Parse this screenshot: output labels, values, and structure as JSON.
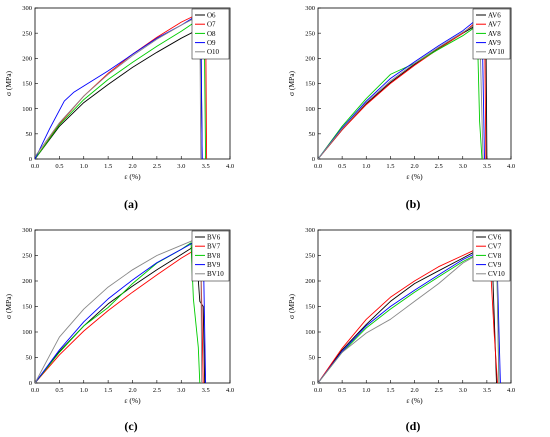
{
  "chart_data": [
    {
      "type": "line",
      "panel_label": "(a)",
      "xlabel": "ε (%)",
      "ylabel": "σ (MPa)",
      "xlim": [
        0.0,
        4.0
      ],
      "ylim": [
        0,
        300
      ],
      "xticks": [
        "0.0",
        "0.5",
        "1.0",
        "1.5",
        "2.0",
        "2.5",
        "3.0",
        "3.5",
        "4.0"
      ],
      "yticks": [
        "0",
        "50",
        "100",
        "150",
        "200",
        "250",
        "300"
      ],
      "legend": "top-right",
      "series": [
        {
          "name": "O6",
          "color": "#000000",
          "points": [
            [
              0,
              0
            ],
            [
              0.5,
              65
            ],
            [
              1.0,
              112
            ],
            [
              1.5,
              148
            ],
            [
              2.0,
              182
            ],
            [
              2.5,
              212
            ],
            [
              3.0,
              240
            ],
            [
              3.4,
              260
            ],
            [
              3.43,
              0
            ]
          ]
        },
        {
          "name": "O7",
          "color": "#ff0000",
          "points": [
            [
              0,
              0
            ],
            [
              0.5,
              70
            ],
            [
              1.0,
              125
            ],
            [
              1.5,
              170
            ],
            [
              2.0,
              208
            ],
            [
              2.5,
              242
            ],
            [
              3.0,
              272
            ],
            [
              3.45,
              293
            ],
            [
              3.5,
              290
            ],
            [
              3.52,
              0
            ]
          ]
        },
        {
          "name": "O8",
          "color": "#00cc00",
          "points": [
            [
              0,
              0
            ],
            [
              0.5,
              68
            ],
            [
              1.0,
              118
            ],
            [
              1.5,
              158
            ],
            [
              2.0,
              192
            ],
            [
              2.5,
              224
            ],
            [
              3.0,
              254
            ],
            [
              3.4,
              280
            ],
            [
              3.47,
              265
            ],
            [
              3.5,
              0
            ]
          ]
        },
        {
          "name": "O9",
          "color": "#0000ff",
          "points": [
            [
              0,
              0
            ],
            [
              0.3,
              60
            ],
            [
              0.6,
              115
            ],
            [
              0.8,
              133
            ],
            [
              1.0,
              145
            ],
            [
              1.5,
              175
            ],
            [
              2.0,
              208
            ],
            [
              2.5,
              240
            ],
            [
              3.0,
              266
            ],
            [
              3.4,
              290
            ],
            [
              3.43,
              0
            ]
          ]
        },
        {
          "name": "O10",
          "color": "#888888",
          "points": [
            [
              0,
              5
            ],
            [
              0.5,
              72
            ],
            [
              1.0,
              125
            ],
            [
              1.5,
              168
            ],
            [
              2.0,
              205
            ],
            [
              2.5,
              238
            ],
            [
              3.0,
              266
            ],
            [
              3.38,
              285
            ],
            [
              3.4,
              0
            ]
          ]
        }
      ]
    },
    {
      "type": "line",
      "panel_label": "(b)",
      "xlabel": "ε (%)",
      "ylabel": "σ (MPa)",
      "xlim": [
        0.0,
        4.0
      ],
      "ylim": [
        0,
        300
      ],
      "xticks": [
        "0.0",
        "0.5",
        "1.0",
        "1.5",
        "2.0",
        "2.5",
        "3.0",
        "3.5",
        "4.0"
      ],
      "yticks": [
        "0",
        "50",
        "100",
        "150",
        "200",
        "250",
        "300"
      ],
      "legend": "top-right",
      "series": [
        {
          "name": "AV6",
          "color": "#000000",
          "points": [
            [
              0,
              0
            ],
            [
              0.5,
              58
            ],
            [
              1.0,
              110
            ],
            [
              1.5,
              152
            ],
            [
              2.0,
              188
            ],
            [
              2.5,
              220
            ],
            [
              3.0,
              250
            ],
            [
              3.4,
              272
            ],
            [
              3.48,
              265
            ],
            [
              3.5,
              0
            ]
          ]
        },
        {
          "name": "AV7",
          "color": "#ff0000",
          "points": [
            [
              0,
              0
            ],
            [
              0.5,
              58
            ],
            [
              1.0,
              108
            ],
            [
              1.5,
              150
            ],
            [
              2.0,
              186
            ],
            [
              2.5,
              219
            ],
            [
              3.0,
              250
            ],
            [
              3.4,
              282
            ],
            [
              3.45,
              283
            ],
            [
              3.48,
              0
            ]
          ]
        },
        {
          "name": "AV8",
          "color": "#00cc00",
          "points": [
            [
              0,
              0
            ],
            [
              0.5,
              65
            ],
            [
              1.0,
              120
            ],
            [
              1.5,
              168
            ],
            [
              2.0,
              190
            ],
            [
              2.5,
              218
            ],
            [
              3.0,
              245
            ],
            [
              3.3,
              265
            ],
            [
              3.35,
              75
            ],
            [
              3.4,
              0
            ]
          ]
        },
        {
          "name": "AV9",
          "color": "#0000ff",
          "points": [
            [
              0,
              0
            ],
            [
              0.5,
              62
            ],
            [
              1.0,
              115
            ],
            [
              1.5,
              160
            ],
            [
              2.0,
              193
            ],
            [
              2.5,
              225
            ],
            [
              3.0,
              255
            ],
            [
              3.3,
              278
            ],
            [
              3.4,
              280
            ],
            [
              3.45,
              0
            ]
          ]
        },
        {
          "name": "AV10",
          "color": "#888888",
          "points": [
            [
              0,
              0
            ],
            [
              0.5,
              60
            ],
            [
              1.0,
              112
            ],
            [
              1.5,
              155
            ],
            [
              2.0,
              190
            ],
            [
              2.5,
              222
            ],
            [
              3.0,
              252
            ],
            [
              3.35,
              272
            ],
            [
              3.42,
              0
            ]
          ]
        }
      ]
    },
    {
      "type": "line",
      "panel_label": "(c)",
      "xlabel": "ε (%)",
      "ylabel": "σ (MPa)",
      "xlim": [
        0.0,
        4.0
      ],
      "ylim": [
        0,
        300
      ],
      "xticks": [
        "0.0",
        "0.5",
        "1.0",
        "1.5",
        "2.0",
        "2.5",
        "3.0",
        "3.5",
        "4.0"
      ],
      "yticks": [
        "0",
        "50",
        "100",
        "150",
        "200",
        "250",
        "300"
      ],
      "legend": "top-right",
      "series": [
        {
          "name": "BV6",
          "color": "#000000",
          "points": [
            [
              0,
              0
            ],
            [
              0.5,
              62
            ],
            [
              1.0,
              112
            ],
            [
              1.5,
              155
            ],
            [
              2.0,
              190
            ],
            [
              2.5,
              222
            ],
            [
              3.0,
              252
            ],
            [
              3.3,
              270
            ],
            [
              3.38,
              160
            ],
            [
              3.45,
              150
            ],
            [
              3.48,
              0
            ]
          ]
        },
        {
          "name": "BV7",
          "color": "#ff0000",
          "points": [
            [
              0,
              0
            ],
            [
              0.5,
              55
            ],
            [
              1.0,
              102
            ],
            [
              1.5,
              142
            ],
            [
              2.0,
              178
            ],
            [
              2.5,
              212
            ],
            [
              3.0,
              245
            ],
            [
              3.3,
              262
            ],
            [
              3.4,
              252
            ],
            [
              3.45,
              0
            ]
          ]
        },
        {
          "name": "BV8",
          "color": "#00cc00",
          "points": [
            [
              0,
              0
            ],
            [
              0.5,
              60
            ],
            [
              1.0,
              112
            ],
            [
              1.5,
              148
            ],
            [
              2.0,
              195
            ],
            [
              2.5,
              235
            ],
            [
              3.0,
              262
            ],
            [
              3.2,
              275
            ],
            [
              3.25,
              165
            ],
            [
              3.35,
              70
            ],
            [
              3.38,
              0
            ]
          ]
        },
        {
          "name": "BV9",
          "color": "#0000ff",
          "points": [
            [
              0,
              0
            ],
            [
              0.5,
              65
            ],
            [
              1.0,
              120
            ],
            [
              1.5,
              165
            ],
            [
              2.0,
              202
            ],
            [
              2.5,
              236
            ],
            [
              3.0,
              262
            ],
            [
              3.3,
              278
            ],
            [
              3.45,
              272
            ],
            [
              3.5,
              0
            ]
          ]
        },
        {
          "name": "BV10",
          "color": "#888888",
          "points": [
            [
              0,
              0
            ],
            [
              0.5,
              90
            ],
            [
              1.0,
              145
            ],
            [
              1.5,
              188
            ],
            [
              2.0,
              222
            ],
            [
              2.5,
              250
            ],
            [
              3.0,
              270
            ],
            [
              3.3,
              282
            ],
            [
              3.4,
              275
            ],
            [
              3.42,
              0
            ]
          ]
        }
      ]
    },
    {
      "type": "line",
      "panel_label": "(d)",
      "xlabel": "ε (%)",
      "ylabel": "σ (MPa)",
      "xlim": [
        0.0,
        4.0
      ],
      "ylim": [
        0,
        300
      ],
      "xticks": [
        "0.0",
        "0.5",
        "1.0",
        "1.5",
        "2.0",
        "2.5",
        "3.0",
        "3.5",
        "4.0"
      ],
      "yticks": [
        "0",
        "50",
        "100",
        "150",
        "200",
        "250",
        "300"
      ],
      "legend": "top-right",
      "series": [
        {
          "name": "CV6",
          "color": "#000000",
          "points": [
            [
              0,
              0
            ],
            [
              0.5,
              65
            ],
            [
              1.0,
              115
            ],
            [
              1.5,
              160
            ],
            [
              2.0,
              195
            ],
            [
              2.5,
              220
            ],
            [
              3.0,
              245
            ],
            [
              3.5,
              270
            ],
            [
              3.6,
              272
            ],
            [
              3.7,
              0
            ]
          ]
        },
        {
          "name": "CV7",
          "color": "#ff0000",
          "points": [
            [
              0,
              0
            ],
            [
              0.5,
              68
            ],
            [
              1.0,
              125
            ],
            [
              1.5,
              168
            ],
            [
              2.0,
              200
            ],
            [
              2.5,
              228
            ],
            [
              3.0,
              250
            ],
            [
              3.5,
              272
            ],
            [
              3.55,
              270
            ],
            [
              3.65,
              100
            ],
            [
              3.72,
              0
            ]
          ]
        },
        {
          "name": "CV8",
          "color": "#00cc00",
          "points": [
            [
              0,
              0
            ],
            [
              0.5,
              60
            ],
            [
              1.0,
              108
            ],
            [
              1.5,
              145
            ],
            [
              2.0,
              178
            ],
            [
              2.5,
              208
            ],
            [
              3.0,
              238
            ],
            [
              3.5,
              262
            ],
            [
              3.7,
              270
            ],
            [
              3.75,
              0
            ]
          ]
        },
        {
          "name": "CV9",
          "color": "#0000ff",
          "points": [
            [
              0,
              0
            ],
            [
              0.5,
              62
            ],
            [
              1.0,
              112
            ],
            [
              1.5,
              150
            ],
            [
              2.0,
              182
            ],
            [
              2.5,
              212
            ],
            [
              3.0,
              242
            ],
            [
              3.5,
              265
            ],
            [
              3.7,
              278
            ],
            [
              3.78,
              0
            ]
          ]
        },
        {
          "name": "CV10",
          "color": "#888888",
          "points": [
            [
              0,
              0
            ],
            [
              0.5,
              60
            ],
            [
              1.0,
              98
            ],
            [
              1.5,
              125
            ],
            [
              2.0,
              160
            ],
            [
              2.5,
              195
            ],
            [
              3.0,
              235
            ],
            [
              3.5,
              262
            ],
            [
              3.7,
              275
            ],
            [
              3.75,
              0
            ]
          ]
        }
      ]
    }
  ]
}
